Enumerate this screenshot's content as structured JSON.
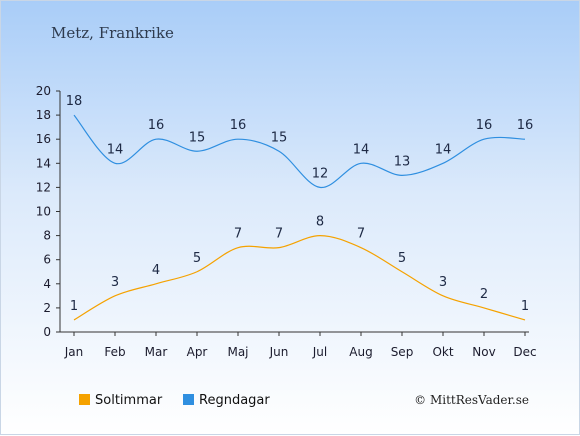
{
  "chart_data": {
    "type": "line",
    "title": "Metz, Frankrike",
    "categories": [
      "Jan",
      "Feb",
      "Mar",
      "Apr",
      "Maj",
      "Jun",
      "Jul",
      "Aug",
      "Sep",
      "Okt",
      "Nov",
      "Dec"
    ],
    "ylim": [
      0,
      20
    ],
    "yticks": [
      0,
      2,
      4,
      6,
      8,
      10,
      12,
      14,
      16,
      18,
      20
    ],
    "grid": false,
    "legend_position": "bottom-left",
    "series": [
      {
        "name": "Soltimmar",
        "color": "#f5a200",
        "values": [
          1,
          3,
          4,
          5,
          7,
          7,
          8,
          7,
          5,
          3,
          2,
          1
        ]
      },
      {
        "name": "Regndagar",
        "color": "#2f8fe0",
        "values": [
          18,
          14,
          16,
          15,
          16,
          15,
          12,
          14,
          13,
          14,
          16,
          16
        ]
      }
    ]
  },
  "credit": "© MittResVader.se"
}
